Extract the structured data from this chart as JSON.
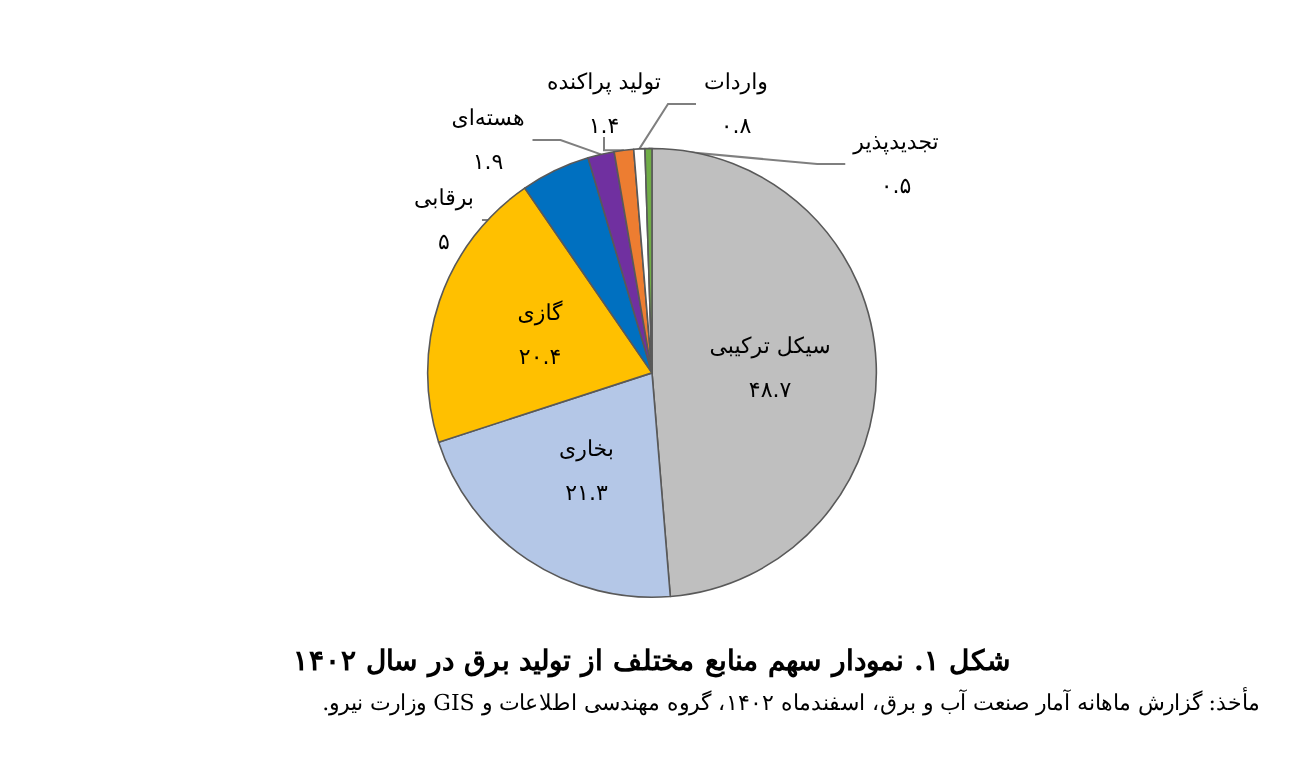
{
  "chart_data": {
    "type": "pie",
    "title": "شکل ۱. نمودار سهم منابع مختلف از تولید برق در سال ۱۴۰۲",
    "categories": [
      "سیکل ترکیبی",
      "بخاری",
      "گازی",
      "برقابی",
      "هسته‌ای",
      "تولید پراکنده",
      "واردات",
      "تجدیدپذیر"
    ],
    "values": [
      48.7,
      21.3,
      20.4,
      5,
      1.9,
      1.4,
      0.8,
      0.5
    ],
    "value_labels": [
      "۴۸.۷",
      "۲۱.۳",
      "۲۰.۴",
      "۵",
      "۱.۹",
      "۱.۴",
      "۰.۸",
      "۰.۵"
    ],
    "colors": [
      "#bfbfbf",
      "#b4c7e7",
      "#ffc000",
      "#0070c0",
      "#7030a0",
      "#ed7d31",
      "#ffffff",
      "#70ad47"
    ],
    "legend": false,
    "annotations": [
      "مأخذ: گزارش ماهانه آمار صنعت آب و برق، اسفندماه ۱۴۰۲، گروه مهندسی اطلاعات و GIS وزارت نیرو."
    ]
  }
}
